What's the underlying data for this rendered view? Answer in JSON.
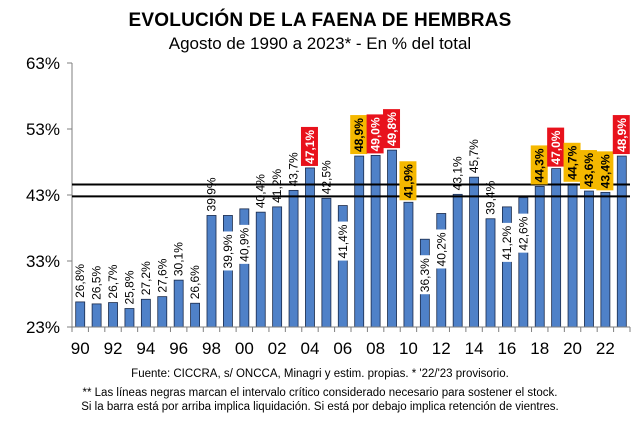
{
  "chart_data": {
    "type": "bar",
    "title": "EVOLUCIÓN DE LA FAENA DE HEMBRAS",
    "subtitle": "Agosto de 1990 a 2023* - En % del total",
    "xlabel": "",
    "ylabel": "",
    "ylim": [
      23,
      63
    ],
    "yticks": [
      "23%",
      "33%",
      "43%",
      "53%",
      "63%"
    ],
    "ytick_values": [
      23,
      33,
      43,
      53,
      63
    ],
    "xtick_labels": [
      "90",
      "92",
      "94",
      "96",
      "98",
      "00",
      "02",
      "04",
      "06",
      "08",
      "10",
      "12",
      "14",
      "16",
      "18",
      "20",
      "22"
    ],
    "categories": [
      "1990",
      "1991",
      "1992",
      "1993",
      "1994",
      "1995",
      "1996",
      "1997",
      "1998",
      "1999",
      "2000",
      "2001",
      "2002",
      "2003",
      "2004",
      "2005",
      "2006",
      "2007",
      "2008",
      "2009",
      "2010",
      "2011",
      "2012",
      "2013",
      "2014",
      "2015",
      "2016",
      "2017",
      "2018",
      "2019",
      "2020",
      "2021",
      "2022",
      "2023"
    ],
    "values": [
      26.8,
      26.5,
      26.7,
      25.8,
      27.2,
      27.6,
      30.1,
      26.6,
      39.9,
      39.9,
      40.9,
      40.4,
      41.2,
      43.7,
      47.1,
      42.5,
      41.4,
      48.9,
      49.0,
      49.8,
      41.9,
      36.3,
      40.2,
      43.1,
      45.7,
      39.4,
      41.2,
      42.6,
      44.3,
      47.0,
      44.7,
      43.6,
      43.4,
      48.9
    ],
    "labels": [
      "26,8%",
      "26,5%",
      "26,7%",
      "25,8%",
      "27,2%",
      "27,6%",
      "30,1%",
      "26,6%",
      "39,9%",
      "39,9%",
      "40,9%",
      "40,4%",
      "41,2%",
      "43,7%",
      "47,1%",
      "42,5%",
      "41,4%",
      "48,9%",
      "49,0%",
      "49,8%",
      "41,9%",
      "36,3%",
      "40,2%",
      "43,1%",
      "45,7%",
      "39,4%",
      "41,2%",
      "42,6%",
      "44,3%",
      "47,0%",
      "44,7%",
      "43,6%",
      "43,4%",
      "48,9%"
    ],
    "label_style": [
      "plain",
      "plain",
      "plain",
      "plain",
      "plain",
      "plain",
      "plain",
      "plain",
      "plain",
      "plain",
      "plain",
      "plain",
      "plain",
      "plain",
      "red",
      "plain",
      "plain",
      "yellow",
      "red",
      "red",
      "yellow",
      "plain",
      "plain",
      "plain",
      "plain",
      "plain",
      "plain",
      "plain",
      "yellow",
      "red",
      "yellow",
      "yellow",
      "yellow",
      "red"
    ],
    "label_placement": [
      "above",
      "above",
      "above",
      "above",
      "above",
      "above",
      "above",
      "above",
      "above",
      "inside",
      "inside",
      "above",
      "above",
      "above",
      "above",
      "above",
      "inside",
      "above",
      "above",
      "above",
      "above",
      "inside",
      "inside",
      "above",
      "above",
      "above",
      "inside",
      "inside",
      "above",
      "above",
      "above",
      "above",
      "above",
      "above"
    ],
    "reference_lines": [
      44.6,
      42.8
    ],
    "grid": false,
    "colors": {
      "bar": "#4f81c8",
      "bar_edge": "#1a2a4a",
      "red_label": "#e8121c",
      "yellow_label": "#f5b800",
      "ref_line": "#000000"
    }
  },
  "footer": {
    "source": "Fuente: CICCRA, s/ ONCCA, Minagri y estim. propias. * '22/'23  provisorio.",
    "note_line1": "** Las líneas negras marcan el intervalo crítico considerado necesario para sostener el stock.",
    "note_line2": "Si la barra está por arriba implica liquidación. Si está por debajo implica retención de vientres."
  }
}
